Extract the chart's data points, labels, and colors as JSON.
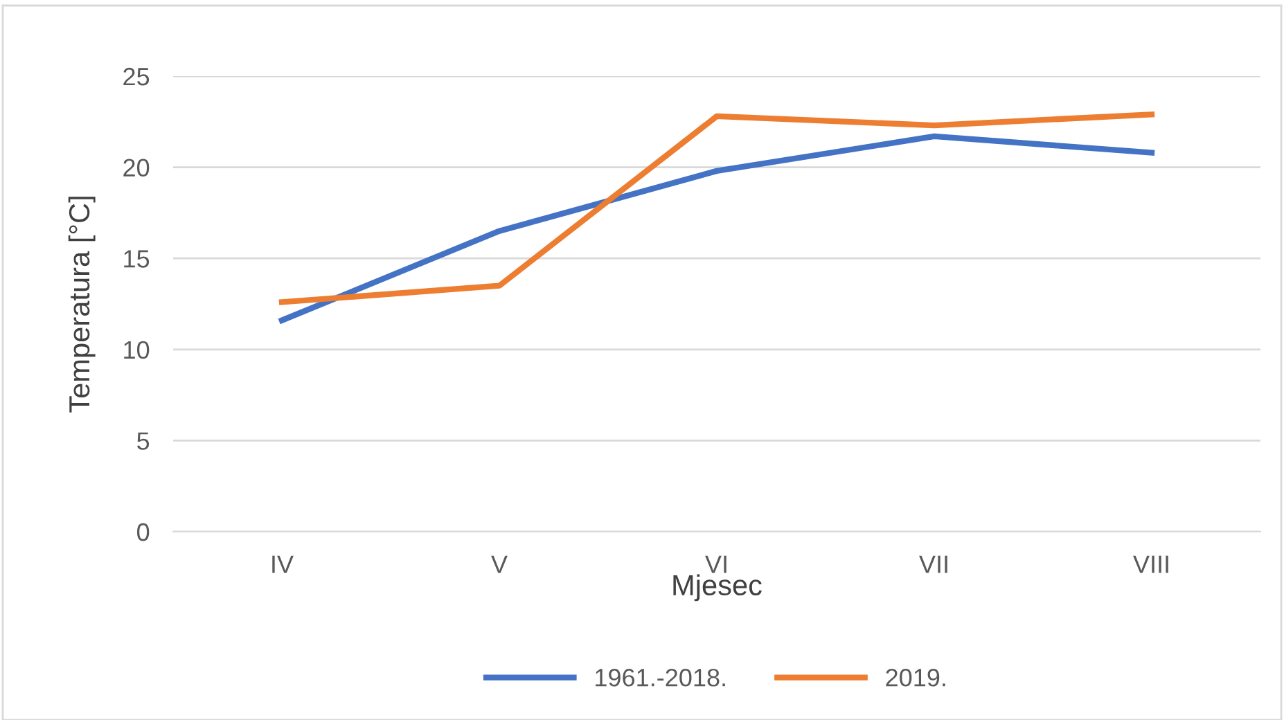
{
  "chart_data": {
    "type": "line",
    "xlabel": "Mjesec",
    "ylabel": "Temperatura [°C]",
    "categories": [
      "IV",
      "V",
      "VI",
      "VII",
      "VIII"
    ],
    "series": [
      {
        "name": "1961.-2018.",
        "color": "#4472c4",
        "values": [
          11.6,
          16.5,
          19.8,
          21.7,
          20.8
        ]
      },
      {
        "name": "2019.",
        "color": "#ed7d31",
        "values": [
          12.6,
          13.5,
          22.8,
          22.3,
          22.9
        ]
      }
    ],
    "ylim": [
      0,
      25
    ],
    "yticks": [
      0,
      5,
      10,
      15,
      20,
      25
    ],
    "grid": "y",
    "legend": "bottom",
    "marker": "none",
    "line_style": "solid"
  }
}
